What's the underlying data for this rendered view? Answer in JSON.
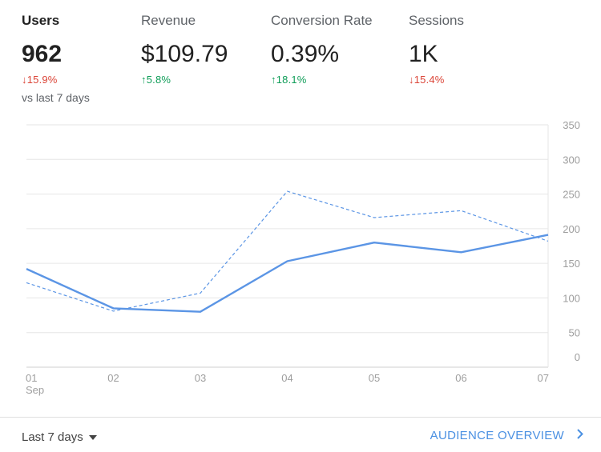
{
  "metrics": [
    {
      "label": "Users",
      "value": "962",
      "change": "15.9%",
      "direction": "down",
      "compare": "vs last 7 days"
    },
    {
      "label": "Revenue",
      "value": "$109.79",
      "change": "5.8%",
      "direction": "up"
    },
    {
      "label": "Conversion Rate",
      "value": "0.39%",
      "change": "18.1%",
      "direction": "up"
    },
    {
      "label": "Sessions",
      "value": "1K",
      "change": "15.4%",
      "direction": "down"
    }
  ],
  "chart_data": {
    "type": "line",
    "x": [
      "01",
      "02",
      "03",
      "04",
      "05",
      "06",
      "07"
    ],
    "x_sublabel": "Sep",
    "ylim": [
      0,
      350
    ],
    "yticks": [
      0,
      50,
      100,
      150,
      200,
      250,
      300,
      350
    ],
    "grid": true,
    "series": [
      {
        "style": "solid",
        "color": "#5b95e5",
        "values": [
          142,
          85,
          80,
          153,
          180,
          166,
          191
        ]
      },
      {
        "style": "dashed",
        "color": "#5b95e5",
        "values": [
          122,
          81,
          107,
          254,
          216,
          226,
          182
        ]
      }
    ]
  },
  "footer": {
    "range_label": "Last 7 days",
    "overview_label": "AUDIENCE OVERVIEW"
  },
  "colors": {
    "accent": "#4a90e2",
    "down": "#db4437",
    "up": "#0f9d58"
  }
}
